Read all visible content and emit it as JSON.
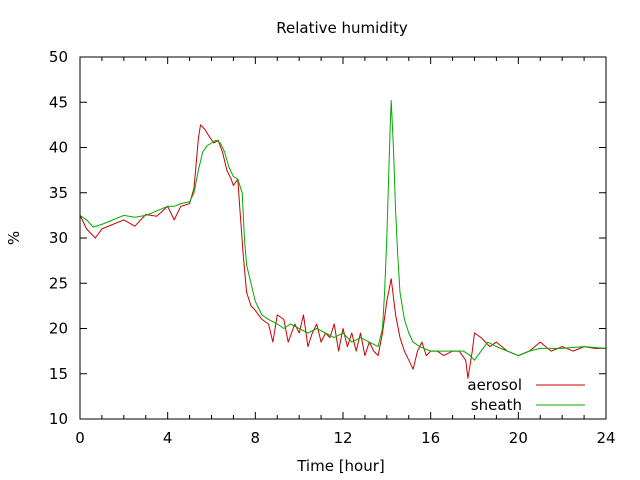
{
  "chart_data": {
    "type": "line",
    "title": "Relative humidity",
    "xlabel": "Time [hour]",
    "ylabel": "%",
    "xlim": [
      0,
      24
    ],
    "ylim": [
      10,
      50
    ],
    "xticks": [
      0,
      4,
      8,
      12,
      16,
      20,
      24
    ],
    "yticks": [
      10,
      15,
      20,
      25,
      30,
      35,
      40,
      45,
      50
    ],
    "grid": false,
    "legend_position": "bottom-right",
    "series": [
      {
        "name": "aerosol",
        "color": "#cc0000",
        "x": [
          0,
          0.3,
          0.7,
          1.0,
          1.5,
          2.0,
          2.5,
          3.0,
          3.5,
          4.0,
          4.3,
          4.6,
          5.0,
          5.2,
          5.4,
          5.5,
          5.7,
          5.9,
          6.1,
          6.3,
          6.5,
          6.7,
          6.9,
          7.0,
          7.2,
          7.3,
          7.45,
          7.6,
          7.8,
          8.0,
          8.3,
          8.6,
          8.8,
          9.0,
          9.3,
          9.5,
          9.8,
          10.0,
          10.2,
          10.4,
          10.6,
          10.8,
          11.0,
          11.2,
          11.4,
          11.6,
          11.8,
          12.0,
          12.2,
          12.4,
          12.6,
          12.8,
          13.0,
          13.2,
          13.4,
          13.6,
          13.8,
          14.0,
          14.2,
          14.4,
          14.6,
          14.8,
          15.0,
          15.2,
          15.4,
          15.6,
          15.8,
          16.0,
          16.3,
          16.6,
          17.0,
          17.3,
          17.6,
          17.7,
          17.9,
          18.0,
          18.3,
          18.7,
          19.0,
          19.5,
          20.0,
          20.5,
          21.0,
          21.5,
          22.0,
          22.5,
          23.0,
          23.5,
          24.0
        ],
        "y": [
          32.5,
          31.0,
          30.0,
          31.0,
          31.5,
          32.0,
          31.3,
          32.6,
          32.4,
          33.5,
          32.0,
          33.5,
          33.8,
          35.5,
          41.0,
          42.5,
          42.0,
          41.2,
          40.5,
          40.8,
          39.5,
          37.5,
          36.5,
          35.8,
          36.5,
          33.0,
          28.0,
          24.0,
          22.5,
          22.0,
          21.0,
          20.5,
          18.5,
          21.5,
          21.0,
          18.5,
          20.5,
          19.5,
          21.5,
          18.0,
          19.5,
          20.5,
          18.5,
          19.5,
          19.0,
          20.5,
          17.5,
          20.0,
          18.0,
          19.5,
          17.5,
          19.5,
          17.0,
          18.5,
          17.5,
          17.0,
          19.5,
          23.0,
          25.5,
          21.5,
          19.0,
          17.5,
          16.5,
          15.5,
          17.5,
          18.5,
          17.0,
          17.5,
          17.5,
          17.0,
          17.5,
          17.5,
          16.5,
          14.5,
          17.5,
          19.5,
          19.0,
          18.0,
          18.5,
          17.5,
          17.0,
          17.5,
          18.5,
          17.5,
          18.0,
          17.5,
          18.0,
          17.8,
          17.8
        ]
      },
      {
        "name": "sheath",
        "color": "#00aa00",
        "x": [
          0,
          0.3,
          0.6,
          1.0,
          1.5,
          2.0,
          2.5,
          3.0,
          3.5,
          4.0,
          4.3,
          4.6,
          5.0,
          5.2,
          5.4,
          5.6,
          5.8,
          6.0,
          6.2,
          6.4,
          6.6,
          6.8,
          7.0,
          7.2,
          7.4,
          7.5,
          7.6,
          7.8,
          8.0,
          8.3,
          8.6,
          9.0,
          9.3,
          9.6,
          10.0,
          10.4,
          10.8,
          11.2,
          11.6,
          12.0,
          12.4,
          12.8,
          13.2,
          13.6,
          13.8,
          13.9,
          14.0,
          14.1,
          14.15,
          14.2,
          14.3,
          14.4,
          14.5,
          14.6,
          14.8,
          15.0,
          15.2,
          15.5,
          16.0,
          16.5,
          17.0,
          17.5,
          17.8,
          18.0,
          18.3,
          18.6,
          19.0,
          19.5,
          20.0,
          20.5,
          21.0,
          22.0,
          23.0,
          24.0
        ],
        "y": [
          32.5,
          32.0,
          31.2,
          31.5,
          32.0,
          32.5,
          32.3,
          32.5,
          33.0,
          33.5,
          33.5,
          33.8,
          34.0,
          35.0,
          37.5,
          39.5,
          40.2,
          40.5,
          40.8,
          40.5,
          39.5,
          37.8,
          36.8,
          36.5,
          35.0,
          30.0,
          27.0,
          25.0,
          23.0,
          21.5,
          21.0,
          20.5,
          20.0,
          20.5,
          20.0,
          19.5,
          20.0,
          19.5,
          19.0,
          19.5,
          18.5,
          19.0,
          18.5,
          18.0,
          20.0,
          24.0,
          30.0,
          38.0,
          42.0,
          45.2,
          40.0,
          33.0,
          28.0,
          24.0,
          21.0,
          19.5,
          18.5,
          18.0,
          17.5,
          17.5,
          17.5,
          17.5,
          17.0,
          16.5,
          17.5,
          18.5,
          18.0,
          17.5,
          17.0,
          17.5,
          17.8,
          17.8,
          18.0,
          17.8
        ]
      }
    ]
  }
}
